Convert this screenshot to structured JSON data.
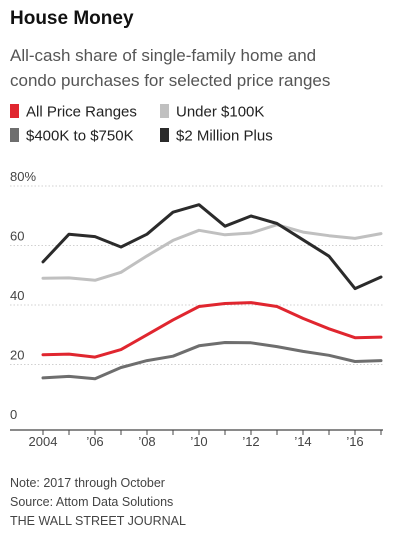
{
  "header": {
    "title": "House Money",
    "subtitle_line1": "All-cash share of single-family home and",
    "subtitle_line2": "condo purchases for selected price ranges"
  },
  "footer": {
    "note": "Note: 2017 through October",
    "source": "Source: Attom Data Solutions",
    "publisher": "THE WALL STREET JOURNAL"
  },
  "chart_data": {
    "type": "line",
    "title": "House Money",
    "subtitle": "All-cash share of single-family home and condo purchases for selected price ranges",
    "x": [
      2004,
      2005,
      2006,
      2007,
      2008,
      2009,
      2010,
      2011,
      2012,
      2013,
      2014,
      2015,
      2016,
      2017
    ],
    "x_tick_values": [
      2004,
      2006,
      2008,
      2010,
      2012,
      2014,
      2016
    ],
    "x_tick_labels": [
      "2004",
      "’06",
      "’08",
      "’10",
      "’12",
      "’14",
      "’16"
    ],
    "y_tick_values": [
      0,
      20,
      40,
      60,
      80
    ],
    "y_tick_labels": [
      "0",
      "20",
      "40",
      "60",
      "80%"
    ],
    "ylim": [
      0,
      80
    ],
    "xlim": [
      2004,
      2017
    ],
    "grid": "horizontal",
    "legend_position": "top",
    "series": [
      {
        "name": "All Price Ranges",
        "color": "#e0262f",
        "values": [
          23.3,
          23.5,
          22.5,
          25,
          30,
          35,
          39.5,
          40.5,
          40.8,
          39.5,
          35.5,
          32,
          29,
          29.2
        ]
      },
      {
        "name": "Under $100K",
        "color": "#c0c0c0",
        "values": [
          49,
          49.1,
          48.3,
          51,
          56.5,
          61.7,
          65.1,
          63.6,
          64.2,
          67,
          64.5,
          63.3,
          62.4,
          64
        ]
      },
      {
        "name": "$400K to $750K",
        "color": "#6e6e6e",
        "values": [
          15.5,
          16,
          15.2,
          19,
          21.3,
          22.8,
          26.3,
          27.4,
          27.3,
          26,
          24.4,
          23.1,
          21,
          21.3
        ]
      },
      {
        "name": "$2 Million Plus",
        "color": "#2b2b2b",
        "values": [
          54.5,
          63.8,
          63,
          59.5,
          63.8,
          71.2,
          73.7,
          66.5,
          69.9,
          67.4,
          61.9,
          56.4,
          45.5,
          49.4
        ]
      }
    ]
  }
}
